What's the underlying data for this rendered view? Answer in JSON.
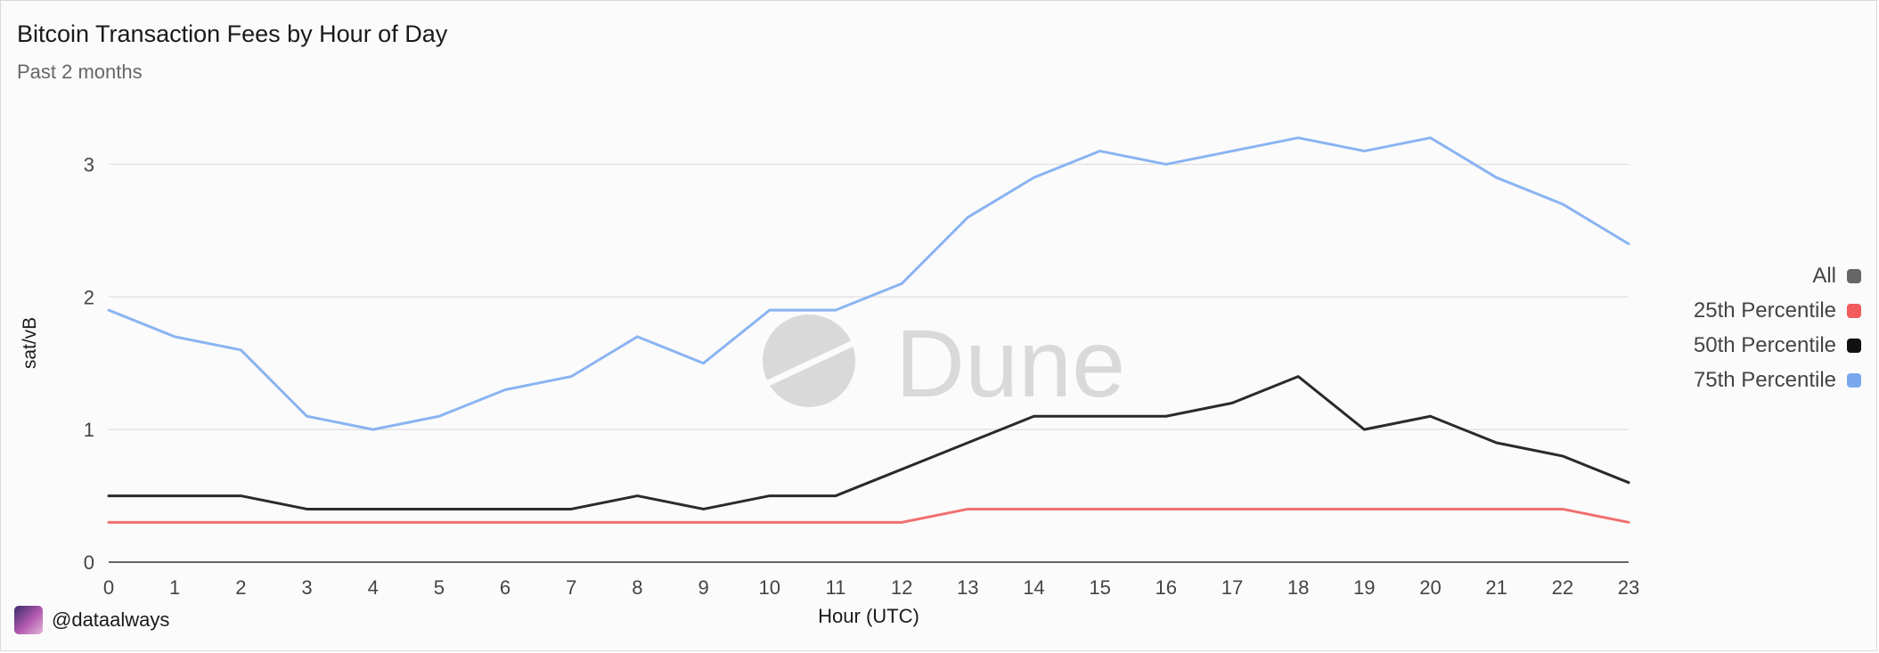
{
  "chart_data": {
    "type": "line",
    "title": "Bitcoin Transaction Fees by Hour of Day",
    "subtitle": "Past 2 months",
    "xlabel": "Hour (UTC)",
    "ylabel": "sat/vB",
    "x": [
      0,
      1,
      2,
      3,
      4,
      5,
      6,
      7,
      8,
      9,
      10,
      11,
      12,
      13,
      14,
      15,
      16,
      17,
      18,
      19,
      20,
      21,
      22,
      23
    ],
    "ylim": [
      0,
      3.5
    ],
    "yticks": [
      0,
      1,
      2,
      3
    ],
    "grid": true,
    "legend_position": "right",
    "legend": [
      {
        "name": "All",
        "color": "#666666"
      },
      {
        "name": "25th Percentile",
        "color": "#f25c5c"
      },
      {
        "name": "50th Percentile",
        "color": "#111111"
      },
      {
        "name": "75th Percentile",
        "color": "#7aa8ee"
      }
    ],
    "series": [
      {
        "name": "25th Percentile",
        "color": "#f07070",
        "values": [
          0.3,
          0.3,
          0.3,
          0.3,
          0.3,
          0.3,
          0.3,
          0.3,
          0.3,
          0.3,
          0.3,
          0.3,
          0.3,
          0.4,
          0.4,
          0.4,
          0.4,
          0.4,
          0.4,
          0.4,
          0.4,
          0.4,
          0.4,
          0.3
        ]
      },
      {
        "name": "50th Percentile",
        "color": "#2a2a2a",
        "values": [
          0.5,
          0.5,
          0.5,
          0.4,
          0.4,
          0.4,
          0.4,
          0.4,
          0.5,
          0.4,
          0.5,
          0.5,
          0.7,
          0.9,
          1.1,
          1.1,
          1.1,
          1.2,
          1.4,
          1.0,
          1.1,
          0.9,
          0.8,
          0.6
        ]
      },
      {
        "name": "75th Percentile",
        "color": "#8ab4f2",
        "values": [
          1.9,
          1.7,
          1.6,
          1.1,
          1.0,
          1.1,
          1.3,
          1.4,
          1.7,
          1.5,
          1.9,
          1.9,
          2.1,
          2.6,
          2.9,
          3.1,
          3.0,
          3.1,
          3.2,
          3.1,
          3.2,
          2.9,
          2.7,
          2.4
        ]
      }
    ],
    "watermark": "Dune"
  },
  "credit": {
    "handle": "@dataalways",
    "avatar_icon": "avatar-icon"
  }
}
